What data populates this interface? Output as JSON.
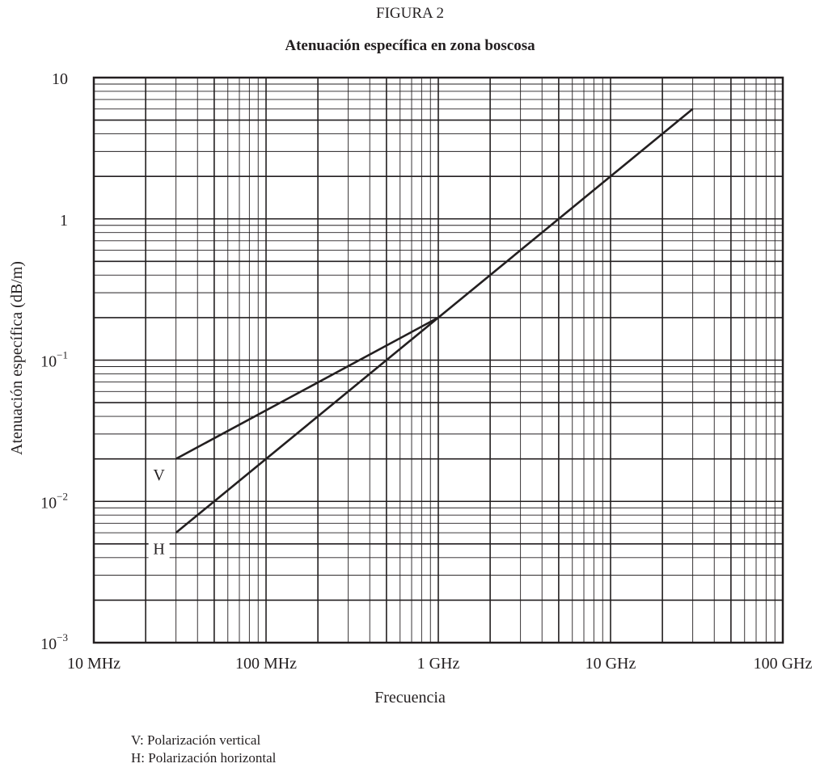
{
  "figure": {
    "label": "FIGURA 2",
    "title": "Atenuación específica en zona boscosa"
  },
  "chart_data": {
    "type": "line",
    "title": "Atenuación específica en zona boscosa",
    "xlabel": "Frecuencia",
    "ylabel": "Atenuación específica (dB/m)",
    "xscale": "log",
    "yscale": "log",
    "xlim": [
      10,
      100000
    ],
    "ylim": [
      0.001,
      10
    ],
    "grid": true,
    "x_unit": "MHz",
    "x_ticks": [
      {
        "value": 10,
        "label": "10 MHz"
      },
      {
        "value": 100,
        "label": "100 MHz"
      },
      {
        "value": 1000,
        "label": "1 GHz"
      },
      {
        "value": 10000,
        "label": "10 GHz"
      },
      {
        "value": 100000,
        "label": "100 GHz"
      }
    ],
    "y_ticks": [
      {
        "value": 10,
        "base": "10",
        "exp": ""
      },
      {
        "value": 1,
        "base": "1",
        "exp": ""
      },
      {
        "value": 0.1,
        "base": "10",
        "exp": "−1"
      },
      {
        "value": 0.01,
        "base": "10",
        "exp": "−2"
      },
      {
        "value": 0.001,
        "base": "10",
        "exp": "−3"
      }
    ],
    "series": [
      {
        "name": "V",
        "x": [
          30,
          1000
        ],
        "y": [
          0.02,
          0.2
        ]
      },
      {
        "name": "H",
        "x": [
          30,
          1000,
          30000
        ],
        "y": [
          0.006,
          0.2,
          6
        ]
      }
    ]
  },
  "legend": {
    "items": [
      "V: Polarización vertical",
      "H: Polarización horizontal"
    ]
  }
}
